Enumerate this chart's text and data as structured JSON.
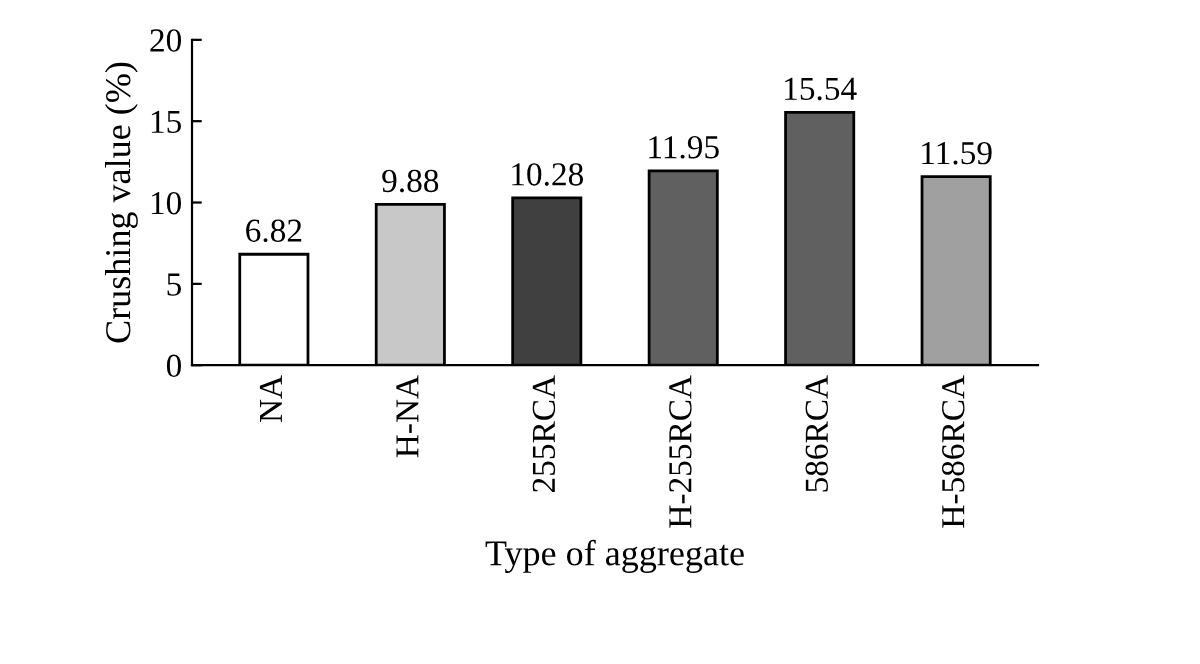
{
  "chart_data": {
    "type": "bar",
    "xlabel": "Type of aggregate",
    "ylabel": "Crushing value (%)",
    "categories": [
      "NA",
      "H-NA",
      "255RCA",
      "H-255RCA",
      "586RCA",
      "H-586RCA"
    ],
    "values": [
      6.82,
      9.88,
      10.28,
      11.95,
      15.54,
      11.59
    ],
    "colors": [
      "#ffffff",
      "#c8c8c8",
      "#404040",
      "#606060",
      "#606060",
      "#a0a0a0"
    ],
    "ylim": [
      0,
      20
    ],
    "yticks": [
      0,
      5,
      10,
      15,
      20
    ],
    "grid": false,
    "data_labels": true
  }
}
